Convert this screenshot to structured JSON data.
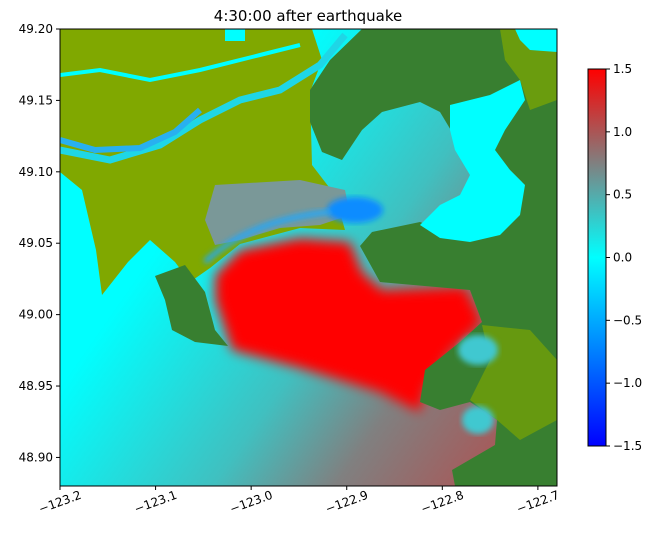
{
  "chart_data": {
    "type": "heatmap",
    "title": "4:30:00 after earthquake",
    "xlabel": "",
    "ylabel": "",
    "xlim": [
      -123.2,
      -122.68
    ],
    "ylim": [
      48.88,
      49.2
    ],
    "x_ticks": [
      "−123.2",
      "−123.1",
      "−123.0",
      "−122.9",
      "−122.8",
      "−122.7"
    ],
    "x_tick_values": [
      -123.2,
      -123.1,
      -123.0,
      -122.9,
      -122.8,
      -122.7
    ],
    "y_ticks": [
      "49.20",
      "49.15",
      "49.10",
      "49.05",
      "49.00",
      "48.95",
      "48.90"
    ],
    "y_tick_values": [
      49.2,
      49.15,
      49.1,
      49.05,
      49.0,
      48.95,
      48.9
    ],
    "colorbar": {
      "range": [
        -1.5,
        1.5
      ],
      "ticks": [
        "1.5",
        "1.0",
        "0.5",
        "0.0",
        "−0.5",
        "−1.0",
        "−1.5"
      ],
      "tick_values": [
        1.5,
        1.0,
        0.5,
        0.0,
        -0.5,
        -1.0,
        -1.5
      ],
      "colors": {
        "-1.5": "#0000ff",
        "0.0": "#00ffff",
        "0.75": "#808080",
        "1.5": "#ff0000"
      }
    },
    "land_colors": {
      "lowland": "#80a800",
      "highland": "#387f30"
    }
  }
}
